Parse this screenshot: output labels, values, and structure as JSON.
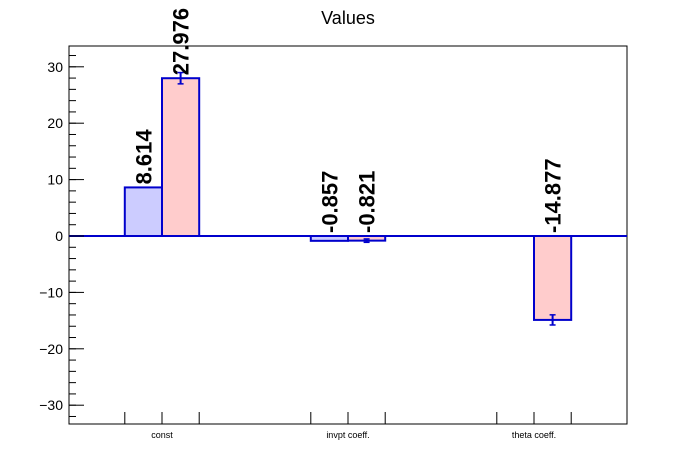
{
  "chart_data": {
    "type": "bar",
    "title": "Values",
    "xlabel": "",
    "ylabel": "",
    "ylim": [
      -33.5,
      33.5
    ],
    "yticks": [
      -30,
      -20,
      -10,
      0,
      10,
      20,
      30
    ],
    "ytick_labels": [
      "−30",
      "−20",
      "−10",
      "0",
      "10",
      "20",
      "30"
    ],
    "y_minor_step": 2,
    "categories": [
      "const",
      "invpt coeff.",
      "theta coeff."
    ],
    "grid": false,
    "series": [
      {
        "color_fill": "#ccccff",
        "color_line": "#0000cc",
        "values": [
          8.614,
          -0.857,
          null
        ],
        "errors": [
          0,
          0,
          null
        ],
        "value_labels": [
          "8.614",
          "-0.857",
          ""
        ]
      },
      {
        "color_fill": "#ffcccc",
        "color_line": "#0000cc",
        "values": [
          27.976,
          -0.821,
          -14.877
        ],
        "errors": [
          1.0,
          0.3,
          0.9
        ],
        "value_labels": [
          "27.976",
          "-0.821",
          "-14.877"
        ]
      }
    ]
  }
}
